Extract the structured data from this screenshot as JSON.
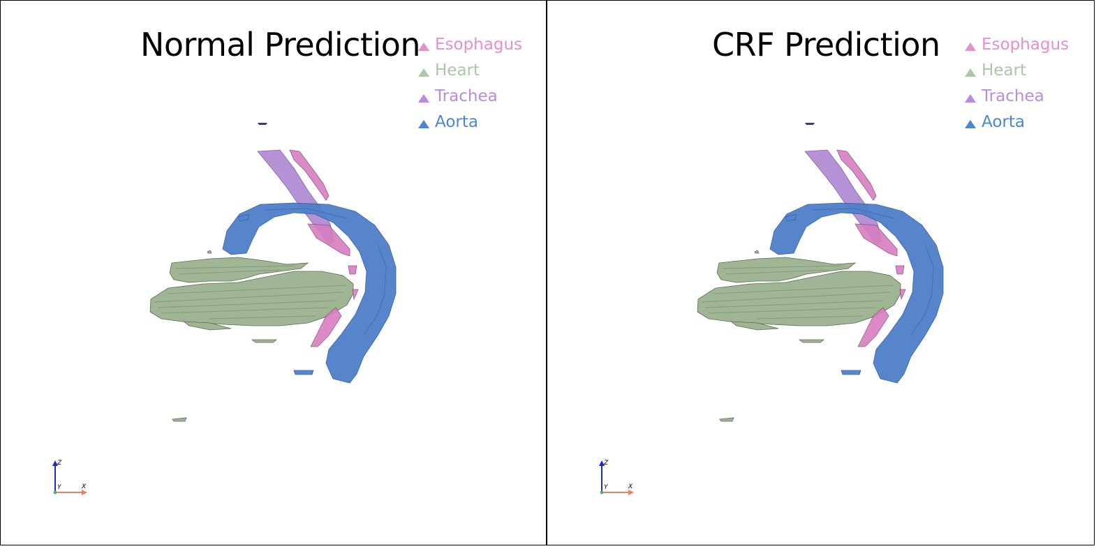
{
  "panels": [
    {
      "id": "left",
      "title": "Normal Prediction"
    },
    {
      "id": "right",
      "title": "CRF Prediction"
    }
  ],
  "legend": [
    {
      "label": "Esophagus",
      "color": "#e38fd0"
    },
    {
      "label": "Heart",
      "color": "#a9c9a4"
    },
    {
      "label": "Trachea",
      "color": "#b98be0"
    },
    {
      "label": "Aorta",
      "color": "#4a86d8"
    }
  ],
  "axes": {
    "x": "X",
    "y": "Y",
    "z": "Z"
  },
  "colors": {
    "esophagus": "#d67fc0",
    "heart": "#9fb594",
    "trachea": "#ad86d2",
    "aorta": "#4f7fc9",
    "axis_x": "#f07f5a",
    "axis_z": "#1c29d4",
    "axis_y": "#55b07a"
  }
}
